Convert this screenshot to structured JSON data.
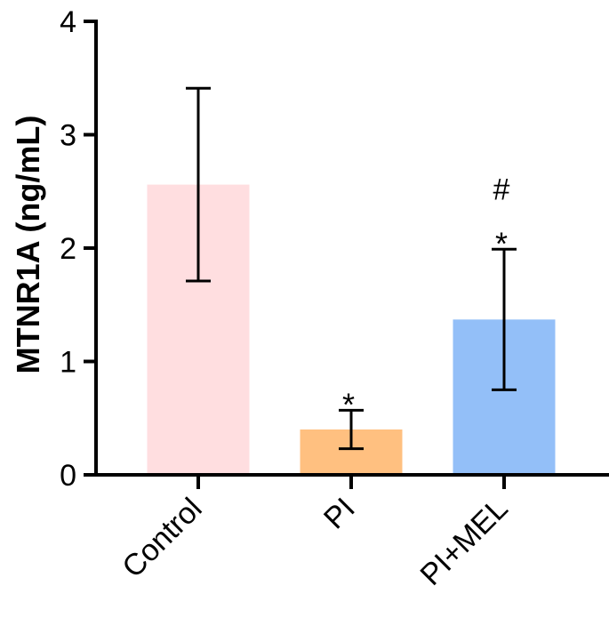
{
  "chart_data": {
    "type": "bar",
    "title": "",
    "xlabel": "",
    "ylabel": "MTNR1A (ng/mL)",
    "ylim": [
      0,
      4
    ],
    "yticks": [
      0,
      1,
      2,
      3,
      4
    ],
    "ytick_labels": [
      "0",
      "1",
      "2",
      "3",
      "4"
    ],
    "grid": false,
    "categories": [
      "Control",
      "PI",
      "PI+MEL"
    ],
    "values": [
      2.56,
      0.4,
      1.37
    ],
    "error_upper": [
      3.41,
      0.57,
      1.99
    ],
    "error_lower": [
      1.71,
      0.23,
      0.75
    ],
    "colors": [
      "#FFDEE0",
      "#FFC080",
      "#93BFF8"
    ],
    "annotations": [
      {
        "category": "PI",
        "lines": [
          "*"
        ]
      },
      {
        "category": "PI+MEL",
        "lines": [
          "#",
          "*"
        ]
      }
    ]
  }
}
